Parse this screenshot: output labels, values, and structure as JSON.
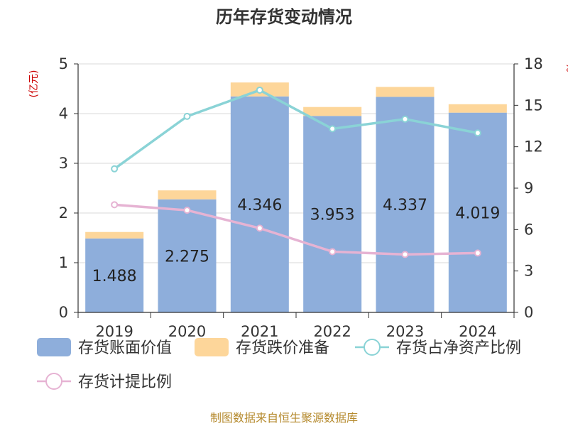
{
  "chart_data": {
    "type": "bar",
    "title": "历年存货变动情况",
    "left_unit": "(亿元)",
    "right_unit": "%",
    "categories": [
      "2019",
      "2020",
      "2021",
      "2022",
      "2023",
      "2024"
    ],
    "ylim_left": [
      0,
      5
    ],
    "yticks_left": [
      "0",
      "1",
      "2",
      "3",
      "4",
      "5"
    ],
    "ylim_right": [
      0,
      18
    ],
    "yticks_right": [
      "0",
      "3",
      "6",
      "9",
      "12",
      "15",
      "18"
    ],
    "grid": true,
    "stacked": true,
    "series": [
      {
        "name": "存货账面价值",
        "kind": "bar",
        "axis": "left",
        "color": "#8eaedb",
        "values": [
          1.488,
          2.275,
          4.346,
          3.953,
          4.337,
          4.019
        ],
        "labels": [
          "1.488",
          "2.275",
          "4.346",
          "3.953",
          "4.337",
          "4.019"
        ]
      },
      {
        "name": "存货跌价准备",
        "kind": "bar",
        "axis": "left",
        "color": "#fdd69a",
        "values": [
          0.13,
          0.18,
          0.28,
          0.18,
          0.2,
          0.17
        ]
      },
      {
        "name": "存货占净资产比例",
        "kind": "line",
        "axis": "right",
        "color": "#8ad3d6",
        "values": [
          10.4,
          14.2,
          16.1,
          13.3,
          14.0,
          13.0
        ]
      },
      {
        "name": "存货计提比例",
        "kind": "line",
        "axis": "right",
        "color": "#e6b3d3",
        "values": [
          7.8,
          7.4,
          6.1,
          4.4,
          4.2,
          4.3
        ]
      }
    ],
    "legend_position": "bottom",
    "source": "制图数据来自恒生聚源数据库"
  }
}
